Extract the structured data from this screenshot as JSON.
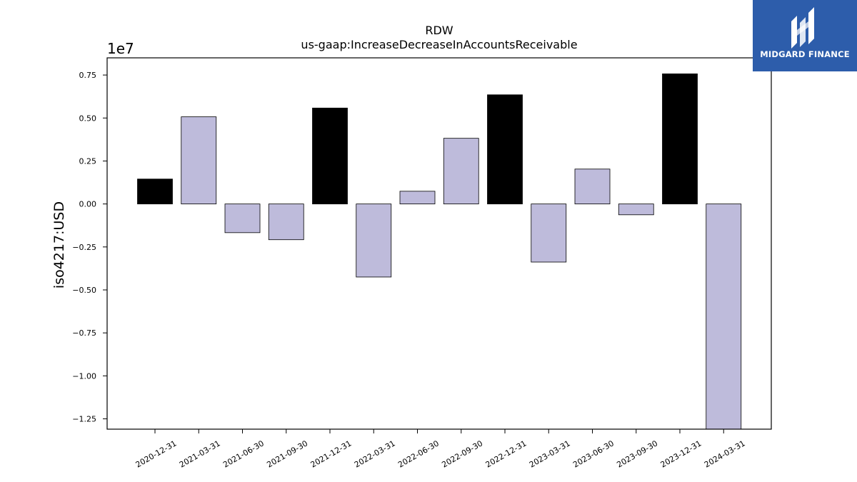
{
  "chart_data": {
    "type": "bar",
    "title": "RDW",
    "subtitle": "us-gaap:IncreaseDecreaseInAccountsReceivable",
    "xlabel": "",
    "ylabel": "iso4217:USD",
    "offset_label": "1e7",
    "categories": [
      "2020-12-31",
      "2021-03-31",
      "2021-06-30",
      "2021-09-30",
      "2021-12-31",
      "2022-03-31",
      "2022-06-30",
      "2022-09-30",
      "2022-12-31",
      "2023-03-31",
      "2023-06-30",
      "2023-09-30",
      "2023-12-31",
      "2024-03-31"
    ],
    "values": [
      1450000,
      5070000,
      -1670000,
      -2080000,
      5580000,
      -4250000,
      740000,
      3820000,
      6350000,
      -3380000,
      2030000,
      -630000,
      7570000,
      -13100000
    ],
    "ylim": [
      -13100000,
      8500000
    ],
    "yticks": [
      {
        "value": 7500000,
        "label": "0.75"
      },
      {
        "value": 5000000,
        "label": "0.50"
      },
      {
        "value": 2500000,
        "label": "0.25"
      },
      {
        "value": 0,
        "label": "0.00"
      },
      {
        "value": -2500000,
        "label": "−0.25"
      },
      {
        "value": -5000000,
        "label": "−0.50"
      },
      {
        "value": -7500000,
        "label": "−0.75"
      },
      {
        "value": -10000000,
        "label": "−1.00"
      },
      {
        "value": -12500000,
        "label": "−1.25"
      }
    ],
    "grid": false,
    "colors": {
      "annual": "#000000",
      "quarterly": "#bebbdb",
      "edge": "#000000"
    },
    "bar_kind": [
      "annual",
      "quarterly",
      "quarterly",
      "quarterly",
      "annual",
      "quarterly",
      "quarterly",
      "quarterly",
      "annual",
      "quarterly",
      "quarterly",
      "quarterly",
      "annual",
      "quarterly"
    ]
  },
  "logo": {
    "text": "MIDGARD FINANCE",
    "icon": "midgard-logo-icon",
    "background": "#2d5dab"
  }
}
